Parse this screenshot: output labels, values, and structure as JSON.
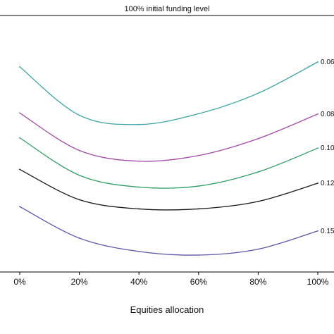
{
  "chart_data": {
    "type": "line",
    "header": "100% initial funding level",
    "xlabel": "Equities allocation",
    "ylabel": "",
    "xlim": [
      0,
      100
    ],
    "x_ticks": [
      {
        "value": 0,
        "label": "0%"
      },
      {
        "value": 20,
        "label": "20%"
      },
      {
        "value": 40,
        "label": "40%"
      },
      {
        "value": 60,
        "label": "60%"
      },
      {
        "value": 80,
        "label": "80%"
      },
      {
        "value": 100,
        "label": "100%"
      }
    ],
    "ylim": [
      0,
      1
    ],
    "grid": false,
    "series": [
      {
        "name": "0.06",
        "color": "#3aa3a3",
        "x": [
          0,
          20,
          40,
          60,
          80,
          100
        ],
        "y": [
          0.8,
          0.611,
          0.575,
          0.617,
          0.697,
          0.819
        ]
      },
      {
        "name": "0.08",
        "color": "#a24aa8",
        "x": [
          0,
          20,
          40,
          60,
          80,
          100
        ],
        "y": [
          0.62,
          0.474,
          0.432,
          0.454,
          0.52,
          0.616
        ]
      },
      {
        "name": "0.10",
        "color": "#2f9e63",
        "x": [
          0,
          20,
          40,
          60,
          80,
          100
        ],
        "y": [
          0.523,
          0.377,
          0.331,
          0.335,
          0.39,
          0.483
        ]
      },
      {
        "name": "0.12",
        "color": "#1a1a1a",
        "x": [
          0,
          20,
          40,
          60,
          80,
          100
        ],
        "y": [
          0.4,
          0.282,
          0.246,
          0.246,
          0.275,
          0.346
        ]
      },
      {
        "name": "0.15",
        "color": "#5a55a8",
        "x": [
          0,
          20,
          40,
          60,
          80,
          100
        ],
        "y": [
          0.255,
          0.132,
          0.08,
          0.066,
          0.089,
          0.16
        ]
      }
    ]
  }
}
